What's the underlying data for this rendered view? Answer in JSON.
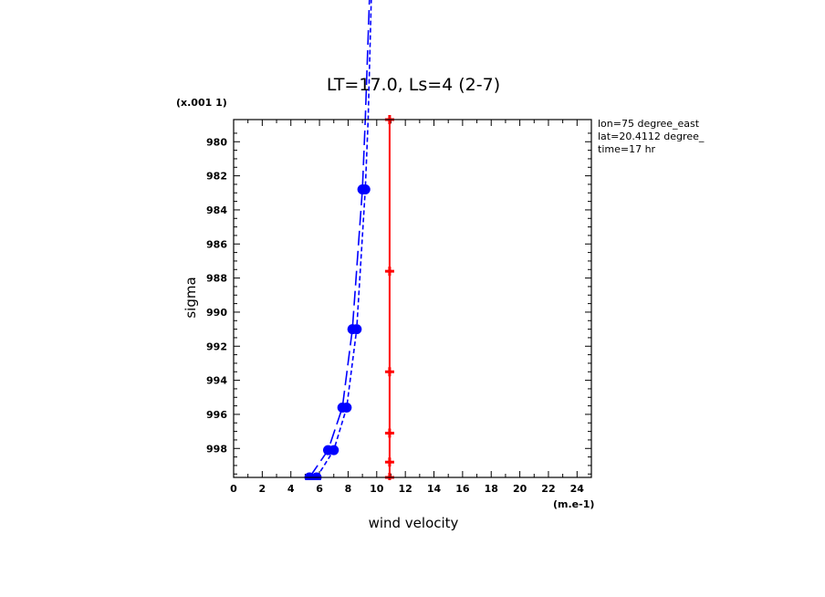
{
  "chart_data": {
    "type": "line",
    "title": "LT=17.0, Ls=4 (2-7)",
    "xlabel": "wind velocity",
    "ylabel": "sigma",
    "x_unit": "(m.e-1)",
    "y_unit": "(x.001 1)",
    "xlim": [
      0,
      25
    ],
    "ylim": [
      999.7,
      978.7
    ],
    "x_ticks": [
      0,
      2,
      4,
      6,
      8,
      10,
      12,
      14,
      16,
      18,
      20,
      22,
      24
    ],
    "y_ticks": [
      980,
      982,
      984,
      986,
      988,
      990,
      992,
      994,
      996,
      998
    ],
    "info": [
      "lon=75 degree_east",
      "lat=20.4112 degree_",
      "time=17 hr"
    ],
    "series": [
      {
        "style": "dashed-long",
        "color": "#0000ff",
        "marker": "circle",
        "points": [
          [
            5.3,
            999.7
          ],
          [
            6.6,
            998.1
          ],
          [
            7.6,
            995.6
          ],
          [
            8.3,
            991.0
          ],
          [
            9.0,
            982.8
          ],
          [
            9.2,
            978.7
          ],
          [
            9.6,
            969.0
          ]
        ],
        "marker_points": [
          [
            5.3,
            999.7
          ],
          [
            6.6,
            998.1
          ],
          [
            7.6,
            995.6
          ],
          [
            8.3,
            991.0
          ],
          [
            9.0,
            982.8
          ]
        ]
      },
      {
        "style": "dashed-short",
        "color": "#0000ff",
        "marker": "circle",
        "points": [
          [
            5.8,
            999.7
          ],
          [
            7.0,
            998.1
          ],
          [
            7.9,
            995.6
          ],
          [
            8.6,
            991.0
          ],
          [
            9.2,
            982.8
          ],
          [
            9.4,
            978.7
          ],
          [
            9.7,
            969.0
          ]
        ],
        "marker_points": [
          [
            5.8,
            999.7
          ],
          [
            7.0,
            998.1
          ],
          [
            7.9,
            995.6
          ],
          [
            8.6,
            991.0
          ],
          [
            9.2,
            982.8
          ]
        ]
      },
      {
        "style": "solid",
        "color": "#ff0000",
        "marker": "plus",
        "points": [
          [
            10.9,
            978.7
          ],
          [
            10.9,
            987.6
          ],
          [
            10.9,
            993.5
          ],
          [
            10.9,
            997.1
          ],
          [
            10.9,
            998.8
          ],
          [
            10.9,
            999.7
          ]
        ],
        "marker_points": [
          [
            10.9,
            978.7
          ],
          [
            10.9,
            987.6
          ],
          [
            10.9,
            993.5
          ],
          [
            10.9,
            997.1
          ],
          [
            10.9,
            998.8
          ],
          [
            10.9,
            999.7
          ]
        ]
      }
    ]
  }
}
